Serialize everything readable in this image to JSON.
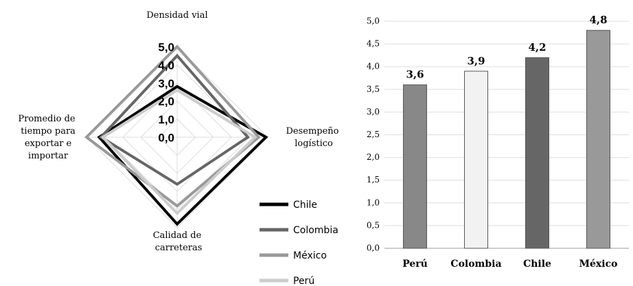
{
  "chart_data": [
    {
      "type": "radar",
      "categories": [
        "Densidad vial",
        "Desempeño logístico",
        "Calidad de carreteras",
        "Promedio de tiempo para exportar e importar"
      ],
      "rlim": [
        0,
        5
      ],
      "rticks": [
        {
          "value": 0,
          "label": "0,0"
        },
        {
          "value": 1,
          "label": "1,0"
        },
        {
          "value": 2,
          "label": "2,0"
        },
        {
          "value": 3,
          "label": "3,0"
        },
        {
          "value": 4,
          "label": "4,0"
        },
        {
          "value": 5,
          "label": "5,0"
        }
      ],
      "grid": true,
      "legend": "lower right",
      "series": [
        {
          "name": "Chile",
          "color": "#000000",
          "values": [
            2.8,
            4.9,
            4.8,
            4.3
          ]
        },
        {
          "name": "Colombia",
          "color": "#666666",
          "values": [
            4.5,
            3.9,
            2.6,
            4.2
          ]
        },
        {
          "name": "México",
          "color": "#999999",
          "values": [
            5.0,
            4.5,
            3.8,
            5.0
          ]
        },
        {
          "name": "Perú",
          "color": "#cccccc",
          "values": [
            2.6,
            4.3,
            4.2,
            4.1
          ]
        }
      ]
    },
    {
      "type": "bar",
      "categories": [
        "Perú",
        "Colombia",
        "Chile",
        "México"
      ],
      "values": [
        3.6,
        3.9,
        4.2,
        4.8
      ],
      "value_labels": [
        "3,6",
        "3,9",
        "4,2",
        "4,8"
      ],
      "colors": [
        "#888888",
        "#f2f2f2",
        "#666666",
        "#999999"
      ],
      "ylim": [
        0,
        5
      ],
      "yticks": [
        {
          "value": 0,
          "label": "0,0"
        },
        {
          "value": 0.5,
          "label": "0,5"
        },
        {
          "value": 1,
          "label": "1,0"
        },
        {
          "value": 1.5,
          "label": "1,5"
        },
        {
          "value": 2,
          "label": "2,0"
        },
        {
          "value": 2.5,
          "label": "2,5"
        },
        {
          "value": 3,
          "label": "3,0"
        },
        {
          "value": 3.5,
          "label": "3,5"
        },
        {
          "value": 4,
          "label": "4,0"
        },
        {
          "value": 4.5,
          "label": "4,5"
        },
        {
          "value": 5,
          "label": "5,0"
        }
      ],
      "grid": true
    }
  ]
}
